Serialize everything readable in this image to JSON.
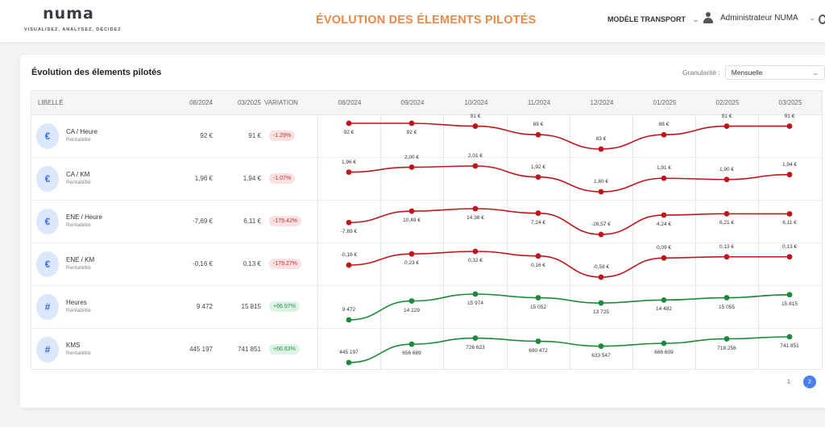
{
  "header": {
    "logo": "numa",
    "tagline": "VISUALISEZ, ANALYSEZ, DÉCIDEZ",
    "page_title": "ÉVOLUTION DES ÉLEMENTS PILOTÉS",
    "model_selector": "MODÈLE TRANSPORT",
    "user_name": "Administrateur NUMA"
  },
  "card": {
    "title": "Évolution des élements pilotés",
    "granularity_label": "Granularité :",
    "granularity_value": "Mensuelle"
  },
  "table": {
    "columns": {
      "label": "LIBELLÉ",
      "start": "08/2024",
      "end": "03/2025",
      "variation": "VARIATION"
    },
    "months": [
      "08/2024",
      "09/2024",
      "10/2024",
      "11/2024",
      "12/2024",
      "01/2025",
      "02/2025",
      "03/2025"
    ],
    "rows": [
      {
        "icon": "€",
        "icon_name": "euro-icon",
        "name": "CA / Heure",
        "category": "Rentabilité",
        "start": "92 €",
        "end": "91 €",
        "variation": "-1.29%",
        "trend": "neg",
        "points": [
          92,
          92,
          91,
          88,
          83,
          88,
          91,
          91
        ],
        "labels": [
          "92 €",
          "92 €",
          "91 €",
          "88 €",
          "83 €",
          "88 €",
          "91 €",
          "91 €"
        ],
        "label_pos": [
          "below",
          "below",
          "above",
          "above",
          "above",
          "above",
          "above",
          "above"
        ]
      },
      {
        "icon": "€",
        "icon_name": "euro-icon",
        "name": "CA / KM",
        "category": "Rentabilité",
        "start": "1,96 €",
        "end": "1,94 €",
        "variation": "-1.07%",
        "trend": "neg",
        "points": [
          1.96,
          2.0,
          2.01,
          1.92,
          1.8,
          1.91,
          1.9,
          1.94
        ],
        "labels": [
          "1,96 €",
          "2,00 €",
          "2,01 €",
          "1,92 €",
          "1,80 €",
          "1,91 €",
          "1,90 €",
          "1,94 €"
        ],
        "label_pos": [
          "above",
          "above",
          "above",
          "above",
          "above",
          "above",
          "above",
          "above"
        ]
      },
      {
        "icon": "€",
        "icon_name": "euro-icon",
        "name": "ENE / Heure",
        "category": "Rentabilité",
        "start": "-7,69 €",
        "end": "6,11 €",
        "variation": "-179.42%",
        "trend": "neg",
        "points": [
          -7.69,
          10.49,
          14.38,
          7.24,
          -26.57,
          4.24,
          6.21,
          6.11
        ],
        "labels": [
          "-7,69 €",
          "10,49 €",
          "14,38 €",
          "7,24 €",
          "-26,57 €",
          "4,24 €",
          "6,21 €",
          "6,11 €"
        ],
        "label_pos": [
          "below",
          "below",
          "below",
          "below",
          "above",
          "below",
          "below",
          "below"
        ]
      },
      {
        "icon": "€",
        "icon_name": "euro-icon",
        "name": "ENE / KM",
        "category": "Rentabilité",
        "start": "-0,16 €",
        "end": "0.13 €",
        "variation": "-179.27%",
        "trend": "neg",
        "points": [
          -0.16,
          0.23,
          0.32,
          0.16,
          -0.58,
          0.09,
          0.13,
          0.13
        ],
        "labels": [
          "-0,16 €",
          "0,23 €",
          "0,32 €",
          "0,16 €",
          "-0,58 €",
          "0,09 €",
          "0,13 €",
          "0,13 €"
        ],
        "label_pos": [
          "above",
          "below",
          "below",
          "below",
          "above",
          "above",
          "above",
          "above"
        ]
      },
      {
        "icon": "#",
        "icon_name": "hash-icon",
        "name": "Heures",
        "category": "Rentabilité",
        "start": "9 472",
        "end": "15 815",
        "variation": "+66.97%",
        "trend": "pos",
        "points": [
          9472,
          14229,
          15974,
          15052,
          13725,
          14482,
          15055,
          15815
        ],
        "labels": [
          "9 472",
          "14 229",
          "15 974",
          "15 052",
          "13 725",
          "14 482",
          "15 055",
          "15 815"
        ],
        "label_pos": [
          "above",
          "below",
          "below",
          "below",
          "below",
          "below",
          "below",
          "below"
        ]
      },
      {
        "icon": "#",
        "icon_name": "hash-icon",
        "name": "KMS",
        "category": "Rentabilité",
        "start": "445 197",
        "end": "741 851",
        "variation": "+66.63%",
        "trend": "pos",
        "points": [
          445197,
          656689,
          726623,
          690472,
          633547,
          666609,
          718256,
          741851
        ],
        "labels": [
          "445 197",
          "656 689",
          "726 623",
          "690 472",
          "633 547",
          "666 609",
          "718 256",
          "741 851"
        ],
        "label_pos": [
          "above",
          "below",
          "below",
          "below",
          "below",
          "below",
          "below",
          "below"
        ]
      }
    ]
  },
  "colors": {
    "negative_line": "#c0161b",
    "positive_line": "#1c8a3c",
    "title_accent": "#e88a4c",
    "pager_active": "#4a7ff0"
  },
  "pagination": {
    "pages": [
      "1",
      "2"
    ],
    "current": "2"
  }
}
